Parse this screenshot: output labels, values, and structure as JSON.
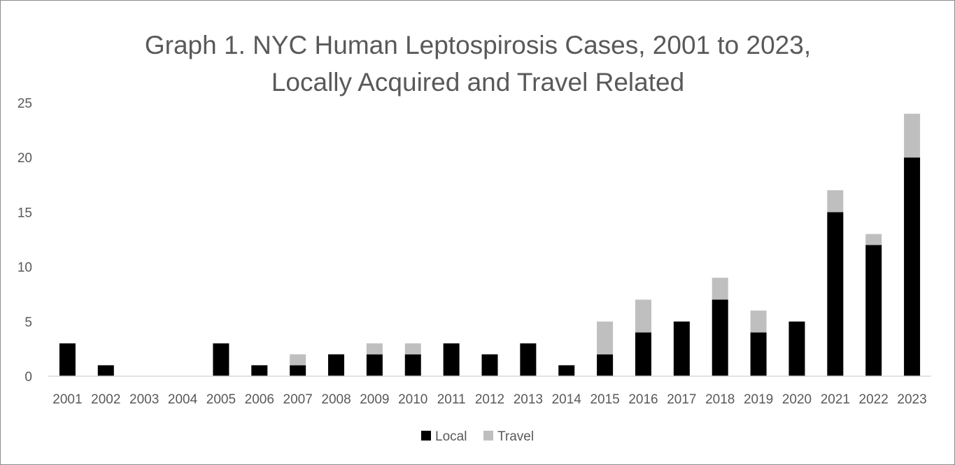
{
  "chart_data": {
    "type": "bar",
    "stacked": true,
    "title": [
      "Graph 1. NYC Human Leptospirosis Cases,  2001 to 2023,",
      "Locally Acquired and Travel Related"
    ],
    "xlabel": "",
    "ylabel": "",
    "categories": [
      "2001",
      "2002",
      "2003",
      "2004",
      "2005",
      "2006",
      "2007",
      "2008",
      "2009",
      "2010",
      "2011",
      "2012",
      "2013",
      "2014",
      "2015",
      "2016",
      "2017",
      "2018",
      "2019",
      "2020",
      "2021",
      "2022",
      "2023"
    ],
    "series": [
      {
        "name": "Local",
        "color": "#000000",
        "values": [
          3,
          1,
          0,
          0,
          3,
          1,
          1,
          2,
          2,
          2,
          3,
          2,
          3,
          1,
          2,
          4,
          5,
          7,
          4,
          5,
          15,
          12,
          20
        ]
      },
      {
        "name": "Travel",
        "color": "#bfbfbf",
        "values": [
          0,
          0,
          0,
          0,
          0,
          0,
          1,
          0,
          1,
          1,
          0,
          0,
          0,
          0,
          3,
          3,
          0,
          2,
          2,
          0,
          2,
          1,
          4
        ]
      }
    ],
    "ylim": [
      0,
      25
    ],
    "yticks": [
      0,
      5,
      10,
      15,
      20,
      25
    ],
    "grid": false,
    "legend": "bottom"
  }
}
